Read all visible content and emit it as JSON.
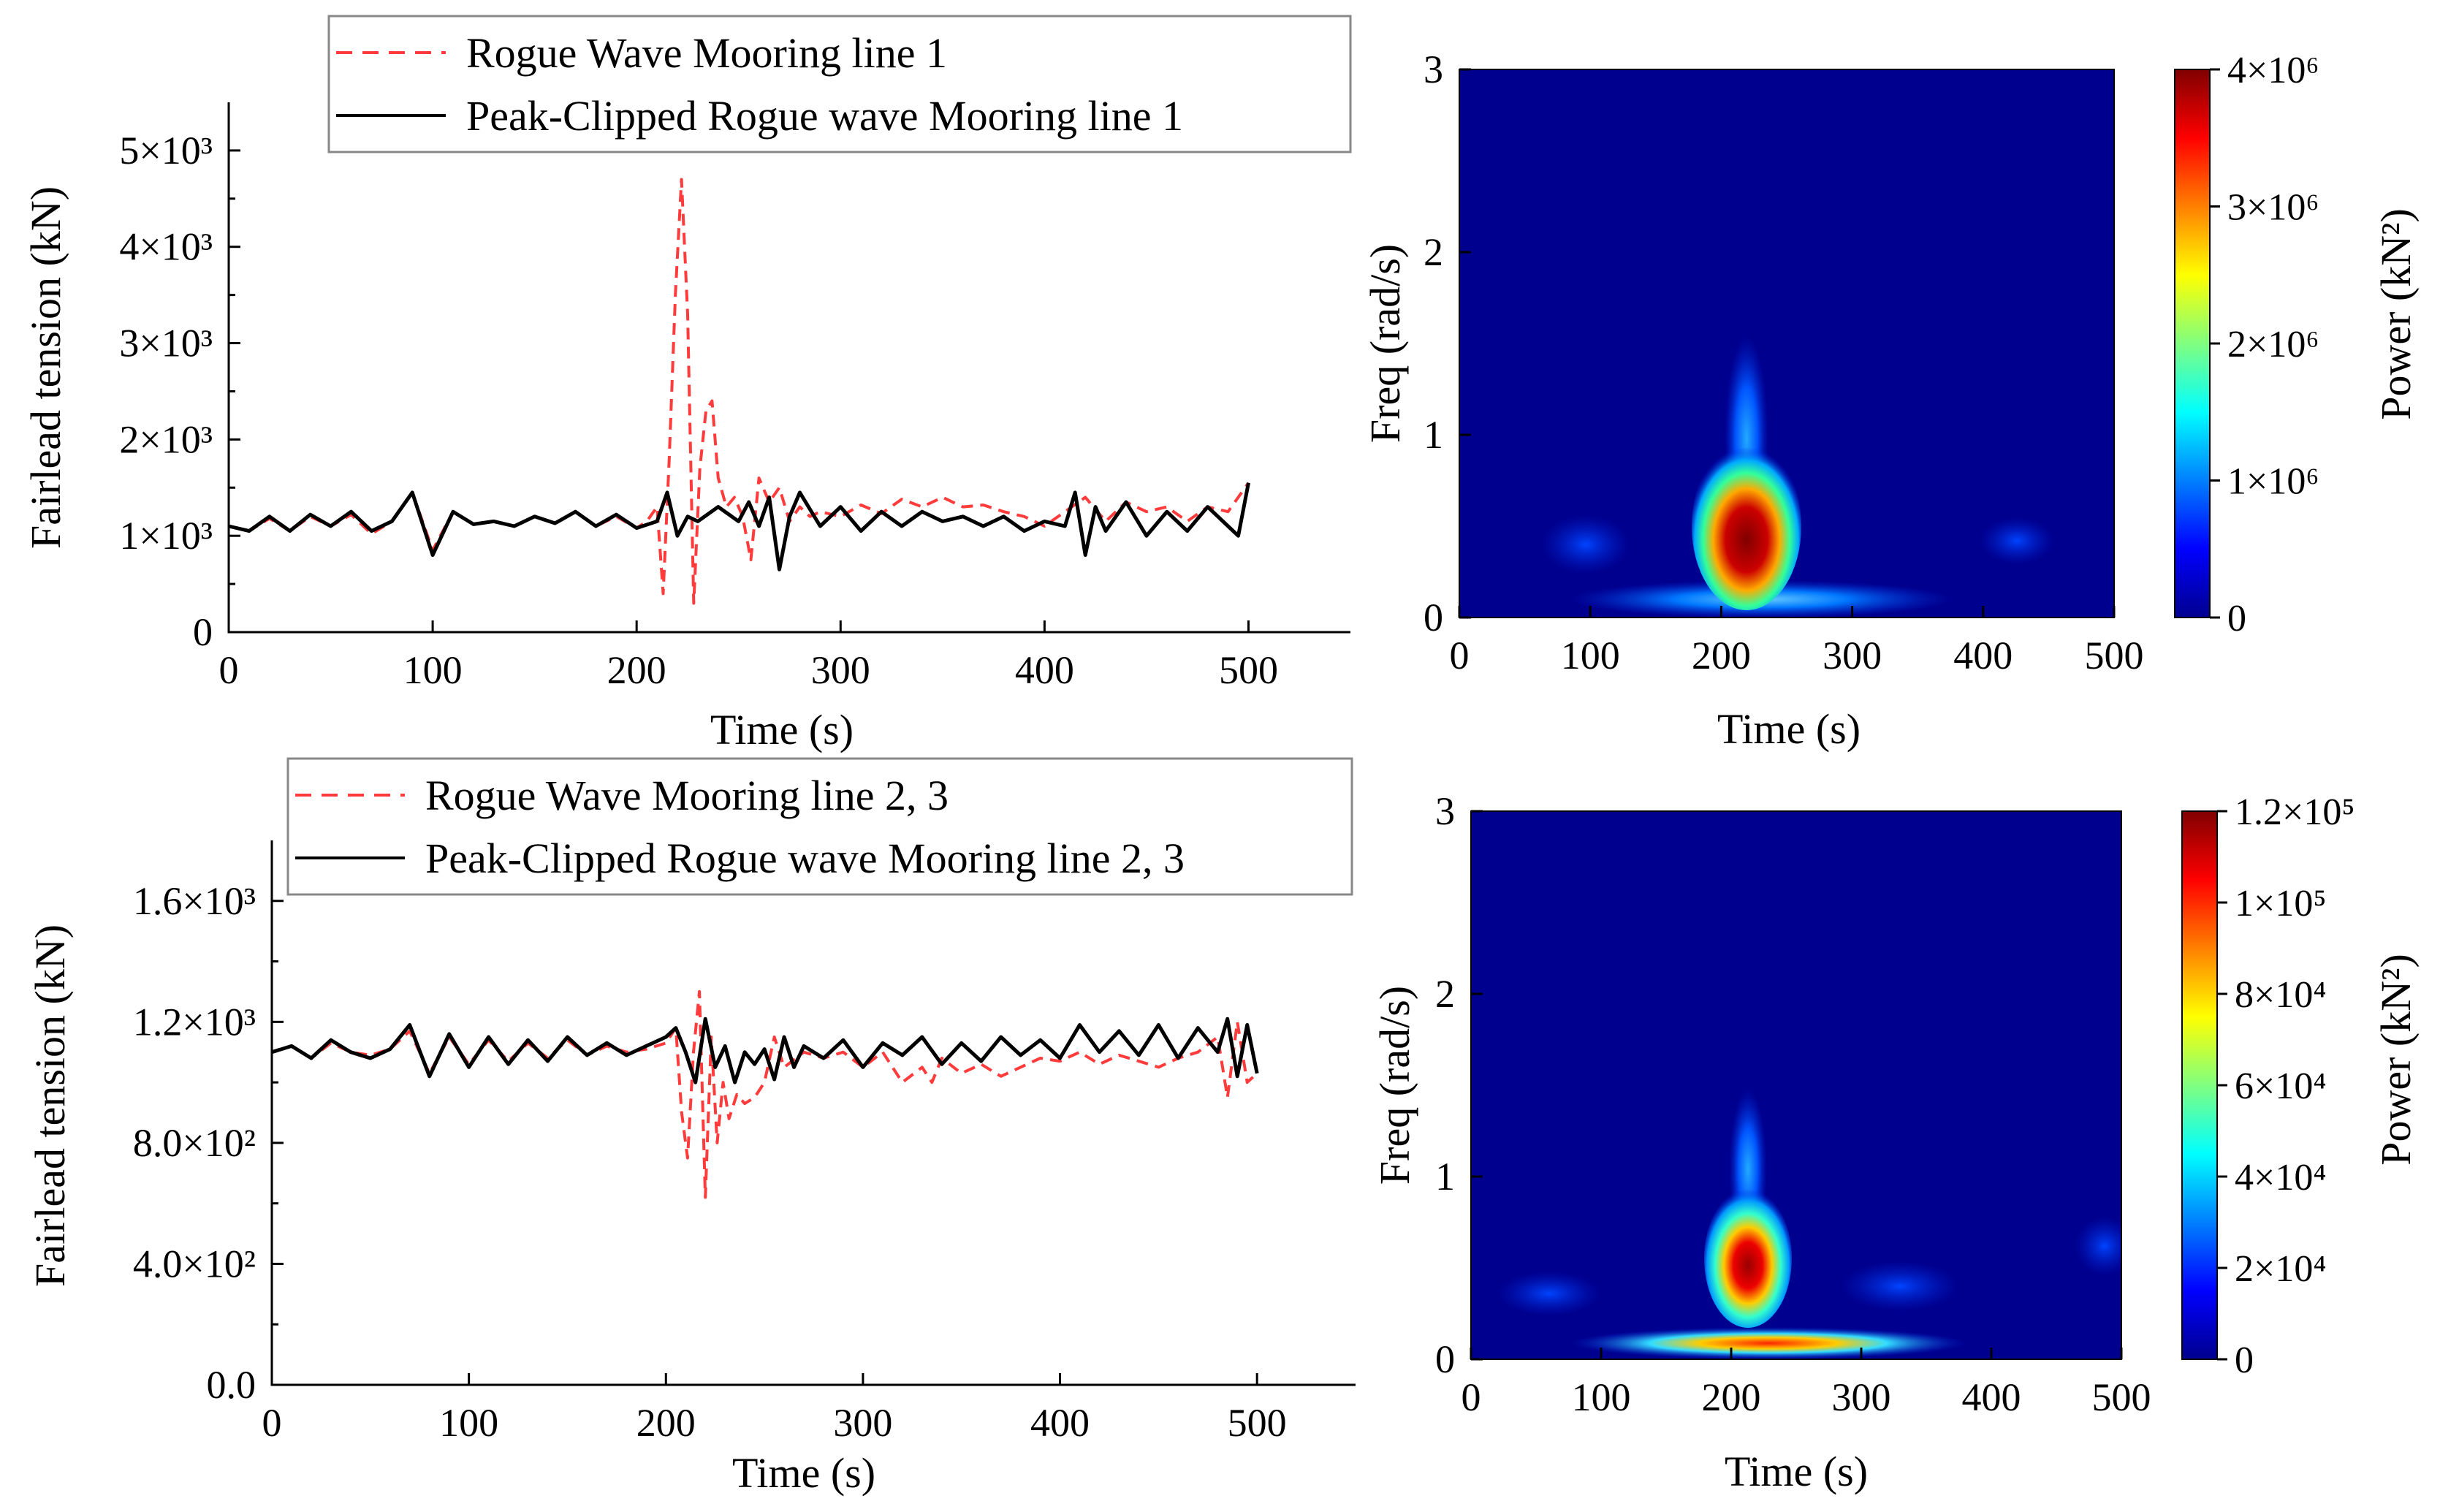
{
  "colors": {
    "rogue": "#ff3b3b",
    "clipped": "#000000",
    "map_background": "#00008f"
  },
  "chart_data": [
    {
      "id": "top-left",
      "type": "line",
      "xlabel": "Time (s)",
      "ylabel": "Fairlead tension (kN)",
      "xlim": [
        0,
        550
      ],
      "ylim": [
        0,
        5500
      ],
      "xticks": [
        0,
        100,
        200,
        300,
        400,
        500
      ],
      "xtick_labels": [
        "0",
        "100",
        "200",
        "300",
        "400",
        "500"
      ],
      "yticks": [
        0,
        1000,
        2000,
        3000,
        4000,
        5000
      ],
      "ytick_labels": [
        "0",
        "1×10³",
        "2×10³",
        "3×10³",
        "4×10³",
        "5×10³"
      ],
      "legend_position": "top",
      "series": [
        {
          "name": "Rogue Wave Mooring line 1",
          "style": "dashed",
          "x": [
            0,
            10,
            20,
            30,
            40,
            50,
            60,
            70,
            80,
            90,
            100,
            110,
            120,
            130,
            140,
            150,
            160,
            170,
            180,
            190,
            200,
            205,
            210,
            213,
            216,
            219,
            222,
            225,
            228,
            231,
            234,
            237,
            240,
            244,
            248,
            252,
            256,
            260,
            265,
            270,
            275,
            280,
            285,
            290,
            300,
            310,
            320,
            330,
            340,
            350,
            360,
            370,
            380,
            390,
            400,
            410,
            420,
            430,
            440,
            450,
            460,
            470,
            480,
            490,
            500
          ],
          "y": [
            1100,
            1050,
            1180,
            1050,
            1200,
            1100,
            1220,
            1020,
            1150,
            1450,
            850,
            1250,
            1120,
            1150,
            1100,
            1200,
            1130,
            1250,
            1100,
            1200,
            1080,
            1150,
            1300,
            400,
            1800,
            3500,
            4700,
            3300,
            300,
            1700,
            2300,
            2400,
            1600,
            1300,
            1400,
            1200,
            750,
            1600,
            1350,
            1500,
            1150,
            1300,
            1200,
            1250,
            1200,
            1320,
            1230,
            1380,
            1300,
            1400,
            1300,
            1320,
            1250,
            1200,
            1100,
            1250,
            1400,
            1150,
            1350,
            1250,
            1300,
            1150,
            1300,
            1250,
            1550
          ]
        },
        {
          "name": "Peak-Clipped Rogue wave Mooring line 1",
          "style": "solid",
          "x": [
            0,
            10,
            20,
            30,
            40,
            50,
            60,
            70,
            80,
            90,
            100,
            110,
            120,
            130,
            140,
            150,
            160,
            170,
            180,
            190,
            200,
            210,
            215,
            220,
            225,
            230,
            240,
            250,
            255,
            260,
            265,
            270,
            275,
            280,
            290,
            300,
            310,
            320,
            330,
            340,
            350,
            360,
            370,
            380,
            390,
            400,
            410,
            415,
            420,
            425,
            430,
            440,
            450,
            460,
            470,
            480,
            490,
            495,
            500
          ],
          "y": [
            1100,
            1050,
            1200,
            1050,
            1220,
            1100,
            1250,
            1050,
            1150,
            1450,
            800,
            1250,
            1120,
            1150,
            1100,
            1200,
            1130,
            1250,
            1100,
            1220,
            1080,
            1150,
            1450,
            1000,
            1200,
            1150,
            1300,
            1150,
            1350,
            1100,
            1400,
            650,
            1200,
            1450,
            1100,
            1300,
            1050,
            1250,
            1100,
            1250,
            1150,
            1200,
            1100,
            1200,
            1050,
            1150,
            1100,
            1450,
            800,
            1300,
            1050,
            1350,
            1000,
            1250,
            1050,
            1300,
            1100,
            1000,
            1550
          ]
        }
      ]
    },
    {
      "id": "top-right",
      "type": "heatmap",
      "xlabel": "Time (s)",
      "ylabel": "Freq (rad/s)",
      "colorbar_label": "Power (kN²)",
      "xlim": [
        0,
        500
      ],
      "ylim": [
        0,
        3
      ],
      "xticks": [
        0,
        100,
        200,
        300,
        400,
        500
      ],
      "xtick_labels": [
        "0",
        "100",
        "200",
        "300",
        "400",
        "500"
      ],
      "yticks": [
        0,
        1,
        2,
        3
      ],
      "ytick_labels": [
        "0",
        "1",
        "2",
        "3"
      ],
      "colorbar_ticks": [
        0,
        1000000,
        2000000,
        3000000,
        4000000
      ],
      "colorbar_labels": [
        "0",
        "1×10⁶",
        "2×10⁶",
        "3×10⁶",
        "4×10⁶"
      ],
      "color_range": [
        0,
        4000000
      ],
      "features": [
        {
          "kind": "blob",
          "t": 222,
          "f": 0.5,
          "peak": "4×10⁶"
        },
        {
          "kind": "plume",
          "t": 222,
          "f_from": 0.8,
          "f_to": 1.9
        },
        {
          "kind": "band",
          "t_from": 100,
          "t_to": 420,
          "f": 0.08
        }
      ]
    },
    {
      "id": "bottom-left",
      "type": "line",
      "xlabel": "Time (s)",
      "ylabel": "Fairlead tension (kN)",
      "xlim": [
        0,
        550
      ],
      "ylim": [
        0,
        1800
      ],
      "xticks": [
        0,
        100,
        200,
        300,
        400,
        500
      ],
      "xtick_labels": [
        "0",
        "100",
        "200",
        "300",
        "400",
        "500"
      ],
      "yticks": [
        0,
        400,
        800,
        1200,
        1600
      ],
      "ytick_labels": [
        "0.0",
        "4.0×10²",
        "8.0×10²",
        "1.2×10³",
        "1.6×10³"
      ],
      "legend_position": "top",
      "series": [
        {
          "name": "Rogue Wave Mooring line 2, 3",
          "style": "dashed",
          "x": [
            0,
            10,
            20,
            30,
            40,
            50,
            60,
            70,
            80,
            90,
            100,
            110,
            120,
            130,
            140,
            150,
            160,
            170,
            180,
            190,
            200,
            205,
            208,
            211,
            214,
            217,
            220,
            223,
            226,
            229,
            232,
            236,
            240,
            245,
            250,
            255,
            260,
            270,
            280,
            290,
            300,
            310,
            320,
            330,
            335,
            340,
            350,
            360,
            370,
            380,
            390,
            400,
            410,
            420,
            430,
            440,
            450,
            460,
            470,
            480,
            485,
            490,
            495,
            500
          ],
          "y": [
            1100,
            1120,
            1080,
            1130,
            1100,
            1090,
            1110,
            1170,
            1030,
            1150,
            1060,
            1140,
            1070,
            1130,
            1080,
            1140,
            1090,
            1120,
            1100,
            1110,
            1130,
            1180,
            900,
            750,
            1100,
            1300,
            620,
            1150,
            800,
            1000,
            880,
            960,
            930,
            950,
            1000,
            1150,
            1050,
            1100,
            1080,
            1100,
            1050,
            1100,
            1000,
            1050,
            1000,
            1080,
            1030,
            1060,
            1020,
            1050,
            1080,
            1070,
            1100,
            1060,
            1090,
            1070,
            1050,
            1080,
            1100,
            1150,
            950,
            1200,
            1000,
            1030
          ]
        },
        {
          "name": "Peak-Clipped Rogue wave Mooring line 2, 3",
          "style": "solid",
          "x": [
            0,
            10,
            20,
            30,
            40,
            50,
            60,
            70,
            80,
            90,
            100,
            110,
            120,
            130,
            140,
            150,
            160,
            170,
            180,
            190,
            200,
            205,
            210,
            215,
            220,
            225,
            230,
            235,
            240,
            245,
            250,
            255,
            260,
            265,
            270,
            280,
            290,
            300,
            310,
            320,
            330,
            340,
            350,
            360,
            370,
            380,
            390,
            400,
            410,
            420,
            430,
            440,
            450,
            460,
            470,
            480,
            485,
            490,
            495,
            500
          ],
          "y": [
            1100,
            1120,
            1080,
            1140,
            1100,
            1080,
            1110,
            1190,
            1020,
            1160,
            1050,
            1150,
            1060,
            1140,
            1070,
            1150,
            1090,
            1130,
            1090,
            1120,
            1150,
            1180,
            1100,
            1000,
            1210,
            1050,
            1120,
            1000,
            1100,
            1060,
            1110,
            1010,
            1150,
            1050,
            1120,
            1080,
            1140,
            1050,
            1130,
            1090,
            1150,
            1060,
            1130,
            1070,
            1150,
            1090,
            1140,
            1080,
            1190,
            1100,
            1170,
            1090,
            1190,
            1080,
            1180,
            1100,
            1210,
            1020,
            1190,
            1030
          ]
        }
      ]
    },
    {
      "id": "bottom-right",
      "type": "heatmap",
      "xlabel": "Time (s)",
      "ylabel": "Freq (rad/s)",
      "colorbar_label": "Power (kN²)",
      "xlim": [
        0,
        500
      ],
      "ylim": [
        0,
        3
      ],
      "xticks": [
        0,
        100,
        200,
        300,
        400,
        500
      ],
      "xtick_labels": [
        "0",
        "100",
        "200",
        "300",
        "400",
        "500"
      ],
      "yticks": [
        0,
        1,
        2,
        3
      ],
      "ytick_labels": [
        "0",
        "1",
        "2",
        "3"
      ],
      "colorbar_ticks": [
        0,
        20000,
        40000,
        60000,
        80000,
        100000,
        120000
      ],
      "colorbar_labels": [
        "0",
        "2×10⁴",
        "4×10⁴",
        "6×10⁴",
        "8×10⁴",
        "1×10⁵",
        "1.2×10⁵"
      ],
      "color_range": [
        0,
        120000
      ],
      "features": [
        {
          "kind": "blob",
          "t": 218,
          "f": 0.55,
          "peak": "1.2×10⁵"
        },
        {
          "kind": "band",
          "t_from": 120,
          "t_to": 380,
          "f": 0.08
        }
      ]
    }
  ]
}
